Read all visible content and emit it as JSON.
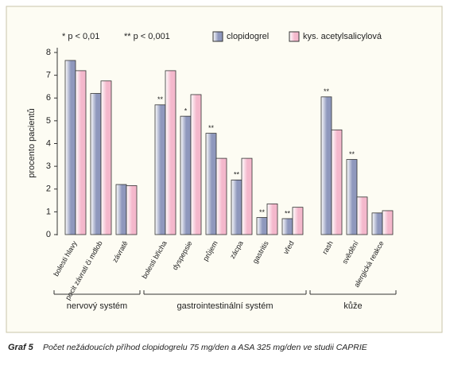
{
  "chart_data": {
    "type": "bar",
    "notes": [
      "* p < 0,01",
      "** p < 0,001"
    ],
    "y_label": "procento pacientů",
    "categories": [
      "bolesti hlavy",
      "pocit závrati či mdlob",
      "závratě",
      "bolesti břicha",
      "dyspepsie",
      "průjem",
      "zácpa",
      "gastritis",
      "vřed",
      "rash",
      "svědění",
      "alergická reakce"
    ],
    "groups": [
      {
        "label": "nervový systém",
        "size": 3
      },
      {
        "label": "gastrointestinální systém",
        "size": 6
      },
      {
        "label": "kůže",
        "size": 3
      }
    ],
    "series": [
      {
        "name": "clopidogrel",
        "color": "#8f98bd",
        "values": [
          7.65,
          6.2,
          2.2,
          5.7,
          5.2,
          4.45,
          2.4,
          0.75,
          0.7,
          6.05,
          3.3,
          0.95
        ],
        "markers": [
          null,
          null,
          null,
          "**",
          "*",
          "**",
          "**",
          "**",
          "**",
          "**",
          "**",
          null
        ]
      },
      {
        "name": "kys. acetylsalicylová",
        "color": "#f4b8cc",
        "values": [
          7.2,
          6.75,
          2.15,
          7.2,
          6.15,
          3.35,
          3.35,
          1.35,
          1.2,
          4.6,
          1.65,
          1.05
        ]
      }
    ],
    "ylim": [
      0,
      8
    ],
    "yticks": [
      0,
      1,
      2,
      3,
      4,
      5,
      6,
      7,
      8
    ],
    "caption_label": "Graf 5",
    "caption": "Počet nežádoucích příhod clopidogrelu 75 mg/den a ASA 325 mg/den ve studii CAPRIE"
  }
}
